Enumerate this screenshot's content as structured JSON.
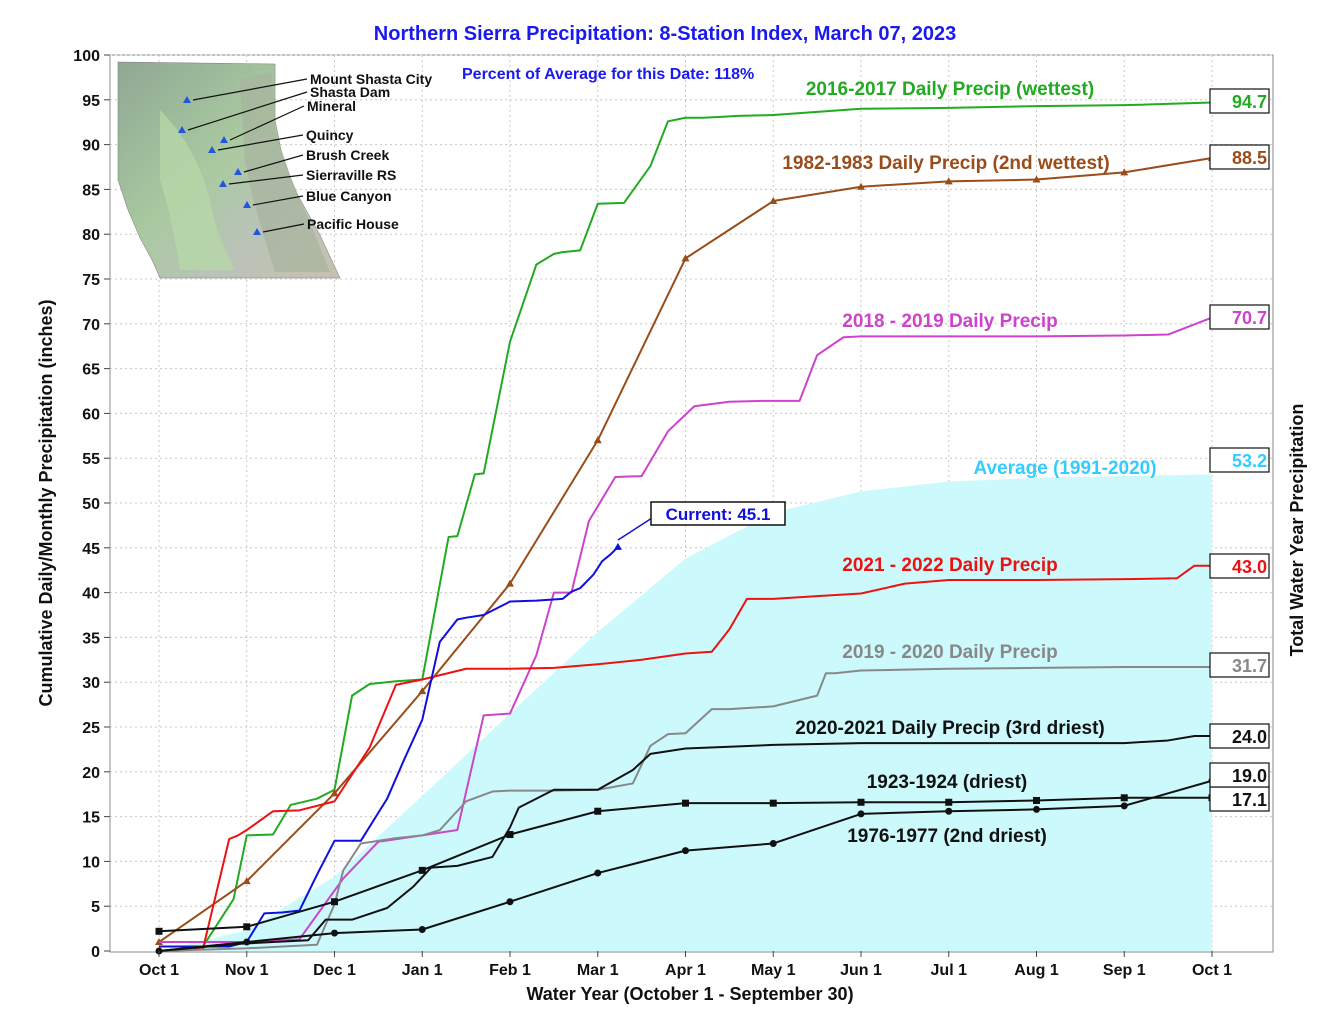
{
  "chart_data": {
    "type": "line",
    "title": "Northern Sierra Precipitation: 8-Station Index, March 07, 2023",
    "subtitle": "Percent of Average for this Date: 118%",
    "xlabel": "Water Year (October 1 - September 30)",
    "ylabel": "Cumulative Daily/Monthly Precipitation (inches)",
    "ylabel_right": "Total Water Year Precipitation",
    "ylim": [
      0,
      100
    ],
    "y_ticks": [
      "0",
      "5",
      "10",
      "15",
      "20",
      "25",
      "30",
      "35",
      "40",
      "45",
      "50",
      "55",
      "60",
      "65",
      "70",
      "75",
      "80",
      "85",
      "90",
      "95",
      "100"
    ],
    "x_ticks": [
      "Oct 1",
      "Nov 1",
      "Dec 1",
      "Jan 1",
      "Feb 1",
      "Mar 1",
      "Apr 1",
      "May 1",
      "Jun 1",
      "Jul 1",
      "Aug 1",
      "Sep 1",
      "Oct 1"
    ],
    "grid": true,
    "current": {
      "label": "Current: 45.1",
      "x": 5.23,
      "y": 45.1
    },
    "stations": [
      "Mount Shasta City",
      "Shasta Dam",
      "Mineral",
      "Quincy",
      "Brush Creek",
      "Sierraville RS",
      "Blue Canyon",
      "Pacific House"
    ],
    "series": [
      {
        "name": "Average (1991-2020)",
        "color": "#33ccff",
        "total": "53.2",
        "x": [
          0,
          1,
          2,
          3,
          4,
          5,
          6,
          7,
          8,
          9,
          10,
          11,
          12
        ],
        "y": [
          0,
          2.3,
          8.3,
          17.3,
          26.5,
          35.6,
          43.8,
          48.9,
          51.3,
          52.4,
          52.8,
          53.0,
          53.2
        ]
      },
      {
        "name": "2016-2017 Daily Precip (wettest)",
        "color": "#22aa22",
        "total": "94.7",
        "x": [
          0,
          0.5,
          0.85,
          1.0,
          1.3,
          1.5,
          1.8,
          2.0,
          2.2,
          2.4,
          2.7,
          3.0,
          3.3,
          3.4,
          3.6,
          3.7,
          4.0,
          4.3,
          4.5,
          4.6,
          4.8,
          5.0,
          5.3,
          5.6,
          5.8,
          6.0,
          6.2,
          6.4,
          6.6,
          7.0,
          8.0,
          9.0,
          10.0,
          11.0,
          12.0
        ],
        "y": [
          0,
          0.5,
          5.8,
          12.9,
          13.0,
          16.3,
          17.0,
          18.0,
          28.5,
          29.8,
          30.1,
          30.3,
          46.2,
          46.3,
          53.2,
          53.3,
          68.0,
          76.6,
          77.8,
          78.0,
          78.2,
          83.4,
          83.5,
          87.6,
          92.6,
          93.0,
          93.0,
          93.1,
          93.2,
          93.3,
          94.0,
          94.1,
          94.3,
          94.4,
          94.7
        ]
      },
      {
        "name": "1982-1983 Daily Precip (2nd wettest)",
        "color": "#994d1a",
        "total": "88.5",
        "x": [
          0,
          1,
          2,
          3,
          4,
          5,
          6,
          7,
          8,
          9,
          10,
          11,
          12
        ],
        "y": [
          1.0,
          7.8,
          17.6,
          29.0,
          41.0,
          57.0,
          77.3,
          83.7,
          85.3,
          85.9,
          86.1,
          86.9,
          88.5
        ]
      },
      {
        "name": "2018 - 2019 Daily Precip",
        "color": "#cc44cc",
        "total": "70.7",
        "x": [
          0,
          1,
          1.6,
          2.1,
          2.5,
          3,
          3.4,
          3.7,
          4.0,
          4.3,
          4.5,
          4.7,
          4.9,
          5.2,
          5.5,
          5.8,
          6.1,
          6.5,
          6.9,
          7.3,
          7.5,
          7.8,
          8.0,
          8.4,
          9.0,
          10.0,
          11.0,
          11.5,
          12.0
        ],
        "y": [
          1.0,
          1.0,
          1.3,
          8.1,
          12.2,
          12.9,
          13.5,
          26.3,
          26.5,
          33.0,
          40.0,
          40.0,
          48.0,
          52.9,
          53.0,
          58.0,
          60.8,
          61.3,
          61.4,
          61.4,
          66.5,
          68.5,
          68.6,
          68.6,
          68.6,
          68.6,
          68.7,
          68.8,
          70.7
        ]
      },
      {
        "name": "2021 - 2022 Daily Precip",
        "color": "#ee1111",
        "total": "43.0",
        "x": [
          0,
          0.5,
          0.8,
          0.9,
          1.0,
          1.3,
          1.6,
          2.0,
          2.4,
          2.7,
          3.0,
          3.5,
          4.0,
          4.5,
          5.0,
          5.5,
          6.0,
          6.3,
          6.5,
          6.7,
          7.0,
          7.5,
          8.0,
          8.5,
          9.0,
          10.0,
          11.0,
          11.6,
          11.8,
          12.0
        ],
        "y": [
          0,
          0.2,
          12.5,
          12.9,
          13.5,
          15.6,
          15.7,
          16.7,
          22.7,
          29.7,
          30.3,
          31.5,
          31.5,
          31.6,
          32.0,
          32.5,
          33.2,
          33.4,
          35.9,
          39.3,
          39.3,
          39.6,
          39.9,
          41.0,
          41.4,
          41.4,
          41.5,
          41.6,
          43.0,
          43.0
        ]
      },
      {
        "name": "Current",
        "color": "#1010dd",
        "total": "",
        "x": [
          0,
          0.8,
          1.0,
          1.2,
          1.4,
          1.6,
          1.8,
          2.0,
          2.3,
          2.6,
          2.8,
          3.0,
          3.2,
          3.4,
          3.5,
          3.7,
          4.0,
          4.3,
          4.6,
          4.7,
          4.8,
          4.95,
          5.05,
          5.15,
          5.23
        ],
        "y": [
          0.5,
          0.5,
          1.0,
          4.2,
          4.3,
          4.5,
          8.5,
          12.3,
          12.3,
          17.0,
          21.5,
          25.8,
          34.5,
          37.0,
          37.2,
          37.5,
          39.0,
          39.1,
          39.3,
          40.1,
          40.5,
          42.0,
          43.5,
          44.3,
          45.1
        ]
      },
      {
        "name": "2019 - 2020 Daily Precip",
        "color": "#888888",
        "total": "31.7",
        "x": [
          0,
          1,
          1.8,
          2.0,
          2.1,
          2.3,
          2.7,
          3.0,
          3.2,
          3.5,
          3.8,
          4.0,
          4.5,
          5.0,
          5.4,
          5.6,
          5.8,
          6.0,
          6.3,
          6.5,
          7.0,
          7.5,
          7.6,
          7.7,
          8.0,
          8.5,
          9.0,
          10.0,
          11.0,
          12.0
        ],
        "y": [
          0,
          0.3,
          0.7,
          5.2,
          9.0,
          12.0,
          12.6,
          12.9,
          13.5,
          16.7,
          17.8,
          17.9,
          17.9,
          18.0,
          18.7,
          22.9,
          24.2,
          24.3,
          27.0,
          27.0,
          27.3,
          28.5,
          31.0,
          31.0,
          31.3,
          31.4,
          31.5,
          31.6,
          31.7,
          31.7
        ]
      },
      {
        "name": "2020-2021 Daily Precip (3rd driest)",
        "color": "#111111",
        "total": "24.0",
        "x": [
          0,
          0.9,
          1.3,
          1.7,
          1.9,
          2.2,
          2.6,
          2.9,
          3.1,
          3.4,
          3.8,
          4.0,
          4.1,
          4.5,
          5.0,
          5.4,
          5.6,
          6.0,
          6.5,
          7.0,
          7.5,
          8.0,
          9.0,
          10.0,
          11.0,
          11.5,
          11.8,
          12.0
        ],
        "y": [
          0,
          0.8,
          1.0,
          1.2,
          3.5,
          3.5,
          4.8,
          7.2,
          9.3,
          9.5,
          10.5,
          13.8,
          16.0,
          18.0,
          18.0,
          20.2,
          22.0,
          22.6,
          22.8,
          23.0,
          23.1,
          23.2,
          23.2,
          23.2,
          23.2,
          23.5,
          24.0,
          24.0
        ]
      },
      {
        "name": "1923-1924 (driest)",
        "color": "#111111",
        "total": "17.1",
        "x": [
          0,
          1,
          2,
          3,
          4,
          5,
          6,
          7,
          8,
          9,
          10,
          11,
          12
        ],
        "y": [
          2.2,
          2.7,
          5.5,
          9.0,
          13.0,
          15.6,
          16.5,
          16.5,
          16.6,
          16.6,
          16.8,
          17.1,
          17.1
        ]
      },
      {
        "name": "1976-1977 (2nd driest)",
        "color": "#111111",
        "total": "19.0",
        "x": [
          0,
          1,
          2,
          3,
          4,
          5,
          6,
          7,
          8,
          9,
          10,
          11,
          12
        ],
        "y": [
          0,
          1.0,
          2.0,
          2.4,
          5.5,
          8.7,
          11.2,
          12.0,
          15.3,
          15.6,
          15.8,
          16.2,
          19.0
        ]
      }
    ]
  }
}
